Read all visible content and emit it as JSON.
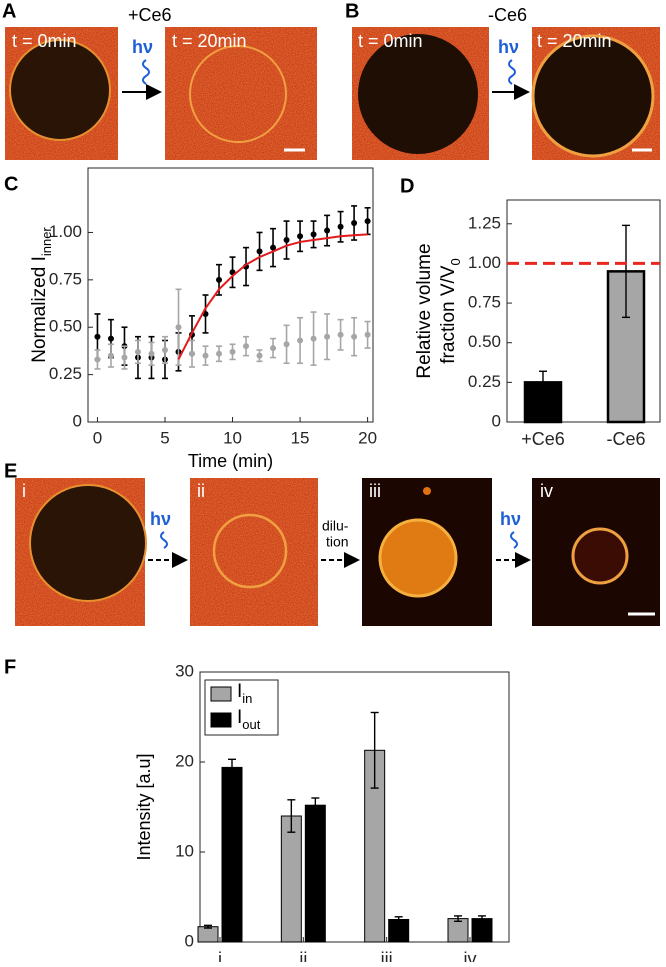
{
  "panels": {
    "a": {
      "label": "A",
      "condition": "+Ce6",
      "before": "t = 0min",
      "after": "t = 20min",
      "light": "hν"
    },
    "b": {
      "label": "B",
      "condition": "-Ce6",
      "before": "t = 0min",
      "after": "t = 20min",
      "light": "hν"
    },
    "c": {
      "label": "C"
    },
    "d": {
      "label": "D"
    },
    "e": {
      "label": "E",
      "images": [
        "i",
        "ii",
        "iii",
        "iv"
      ],
      "arrows": [
        [
          "hν"
        ],
        [
          "dilu-",
          "tion"
        ],
        [
          "hν"
        ]
      ]
    },
    "f": {
      "label": "F"
    }
  },
  "chart_data": [
    {
      "type": "line",
      "xlabel": "Time (min)",
      "ylabel": "Normalized I",
      "ylabel_sub": "inner",
      "xlim": [
        -0.7,
        20.4
      ],
      "ylim": [
        0,
        1.34
      ],
      "xticks": [
        0,
        5,
        10,
        15,
        20
      ],
      "yticks": [
        0,
        {
          "value": 0.25,
          "label": "0.25"
        },
        {
          "value": 0.5,
          "label": "0.50"
        },
        {
          "value": 0.75,
          "label": "0.75"
        },
        {
          "value": 1,
          "label": "1.00"
        }
      ],
      "series": [
        {
          "color": "#000000",
          "markers": true,
          "x": [
            0,
            1,
            2,
            3,
            4,
            5,
            6,
            7,
            8,
            9,
            10,
            11,
            12,
            13,
            14,
            15,
            16,
            17,
            18,
            19,
            20
          ],
          "values": [
            0.45,
            0.44,
            0.4,
            0.34,
            0.34,
            0.33,
            0.37,
            0.46,
            0.57,
            0.75,
            0.79,
            0.82,
            0.9,
            0.92,
            0.96,
            0.98,
            0.99,
            1.01,
            1.03,
            1.05,
            1.06
          ],
          "errors": [
            0.12,
            0.1,
            0.1,
            0.11,
            0.11,
            0.1,
            0.1,
            0.1,
            0.1,
            0.08,
            0.08,
            0.1,
            0.1,
            0.1,
            0.1,
            0.08,
            0.07,
            0.08,
            0.08,
            0.09,
            0.07
          ]
        },
        {
          "color": "#a6a6a6",
          "markers": true,
          "x": [
            0,
            1,
            2,
            3,
            4,
            5,
            6,
            7,
            8,
            9,
            10,
            11,
            12,
            13,
            14,
            15,
            16,
            17,
            18,
            19,
            20
          ],
          "values": [
            0.33,
            0.35,
            0.34,
            0.37,
            0.36,
            0.38,
            0.5,
            0.36,
            0.35,
            0.36,
            0.37,
            0.4,
            0.35,
            0.39,
            0.41,
            0.43,
            0.44,
            0.45,
            0.46,
            0.45,
            0.46
          ],
          "errors": [
            0.05,
            0.06,
            0.06,
            0.06,
            0.06,
            0.07,
            0.2,
            0.07,
            0.05,
            0.04,
            0.04,
            0.05,
            0.03,
            0.05,
            0.1,
            0.12,
            0.14,
            0.12,
            0.08,
            0.1,
            0.07
          ]
        },
        {
          "color": "#e31a1c",
          "markers": false,
          "x": [
            6,
            7,
            8,
            9,
            10,
            11,
            12,
            13,
            14,
            15,
            16,
            17,
            18,
            19,
            20
          ],
          "values": [
            0.33,
            0.47,
            0.6,
            0.7,
            0.77,
            0.83,
            0.87,
            0.9,
            0.93,
            0.95,
            0.96,
            0.97,
            0.98,
            0.985,
            0.99
          ]
        }
      ]
    },
    {
      "type": "bar",
      "ylabel": [
        "Relative volume",
        "fraction V/V"
      ],
      "ylabel_sub": "0",
      "categories": [
        "+Ce6",
        "-Ce6"
      ],
      "values": [
        0.25,
        0.95
      ],
      "errors": [
        0.07,
        0.29
      ],
      "colors": [
        "#000000",
        "#a6a6a6"
      ],
      "ylim": [
        0,
        1.4
      ],
      "yticks": [
        0,
        {
          "value": 0.25,
          "label": "0.25"
        },
        {
          "value": 0.5,
          "label": "0.50"
        },
        {
          "value": 0.75,
          "label": "0.75"
        },
        {
          "value": 1,
          "label": "1.00"
        },
        {
          "value": 1.25,
          "label": "1.25"
        }
      ],
      "reference_line": {
        "value": 1,
        "color": "#e8281e"
      }
    },
    {
      "type": "bar",
      "ylabel": "Intensity [a.u]",
      "categories": [
        "i",
        "ii",
        "iii",
        "iv"
      ],
      "series": [
        {
          "name": "I",
          "name_sub": "in",
          "color": "#a6a6a6",
          "values": [
            1.7,
            14.0,
            21.3,
            2.6
          ],
          "errors": [
            0.15,
            1.8,
            4.2,
            0.3
          ]
        },
        {
          "name": "I",
          "name_sub": "out",
          "color": "#000000",
          "values": [
            19.4,
            15.2,
            2.5,
            2.6
          ],
          "errors": [
            0.9,
            0.8,
            0.3,
            0.3
          ]
        }
      ],
      "ylim": [
        0,
        30
      ],
      "yticks": [
        0,
        10,
        20,
        30
      ],
      "legend": "upper left"
    }
  ]
}
